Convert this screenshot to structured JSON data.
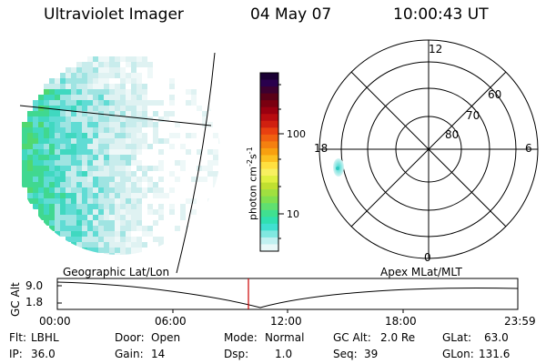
{
  "header": {
    "instrument": "Ultraviolet Imager",
    "date": "04 May 07",
    "time": "10:00:43 UT"
  },
  "colorbar": {
    "unit_label": "photon cm",
    "unit_exp1": "-2",
    "unit_s": "s",
    "unit_exp2": "-1",
    "tick_100": "100",
    "tick_10": "10",
    "colors": [
      "#1a0033",
      "#2a004d",
      "#3d0030",
      "#5a0018",
      "#7a0010",
      "#9a0010",
      "#b80c10",
      "#d02010",
      "#e84010",
      "#f06010",
      "#f48010",
      "#f8a010",
      "#fcc020",
      "#ffe040",
      "#f8f060",
      "#e0f040",
      "#c0e030",
      "#a0e040",
      "#80e050",
      "#60e070",
      "#40e090",
      "#30e0b0",
      "#40e0d0",
      "#80e8e0",
      "#c0f0f0",
      "#e8f8f8"
    ]
  },
  "polar": {
    "mlt_labels": {
      "top": "12",
      "bottom": "0",
      "left": "18",
      "right": "6"
    },
    "lat_labels": [
      "60",
      "70",
      "80"
    ]
  },
  "timeline": {
    "left_title": "Geographic Lat/Lon",
    "right_title": "Apex MLat/MLT",
    "y_axis_label": "GC Alt",
    "y_ticks": [
      "9.0",
      "1.8"
    ],
    "x_ticks": [
      "00:00",
      "06:00",
      "12:00",
      "18:00",
      "23:59"
    ],
    "current_time_marker_color": "#cc0000"
  },
  "status": {
    "row1": [
      {
        "label": "Flt:",
        "value": "LBHL"
      },
      {
        "label": "Door:",
        "value": "Open"
      },
      {
        "label": "Mode:",
        "value": "Normal"
      },
      {
        "label": "GC Alt:",
        "value": "2.0 Re"
      },
      {
        "label": "GLat:",
        "value": "63.0"
      }
    ],
    "row2": [
      {
        "label": "IP:",
        "value": "36.0"
      },
      {
        "label": "Gain:",
        "value": "14"
      },
      {
        "label": "Dsp:",
        "value": "1.0"
      },
      {
        "label": "Seq:",
        "value": "39"
      },
      {
        "label": "GLon:",
        "value": "131.6"
      }
    ]
  }
}
